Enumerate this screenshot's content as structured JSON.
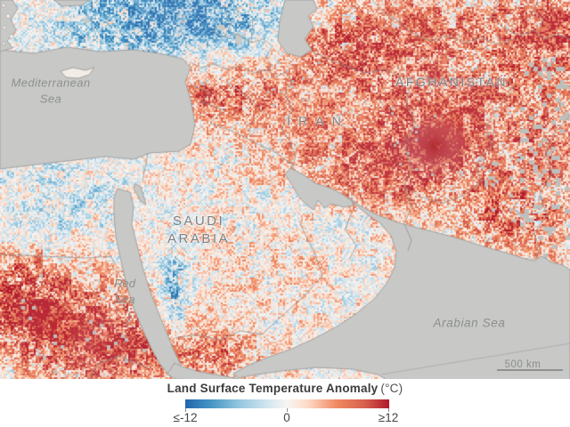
{
  "map": {
    "labels": {
      "mediterranean_sea": "Mediterranean\nSea",
      "iran": "IRAN",
      "afghanistan": "AFGHANISTAN",
      "saudi_arabia": "SAUDI\nARABIA",
      "red_sea": "Red\nSea",
      "arabian_sea": "Arabian Sea"
    },
    "scale_bar": {
      "label": "500 km"
    },
    "colors": {
      "sea": "#c8c9c7",
      "coastline": "#9c9c9c",
      "border": "#8f8f8f",
      "no_data": "#bdbfbd",
      "island_land": "#f2ede6"
    }
  },
  "legend": {
    "title": "Land Surface Temperature Anomaly",
    "unit": "(°C)",
    "ticks": [
      "≤-12",
      "0",
      "≥12"
    ],
    "range_celsius": [
      -12,
      12
    ],
    "gradient": [
      "#2166ac",
      "#4393c3",
      "#92c5de",
      "#d1e5f0",
      "#f7f6f3",
      "#fddbc7",
      "#ef8a62",
      "#d6604d",
      "#b2182b"
    ]
  }
}
